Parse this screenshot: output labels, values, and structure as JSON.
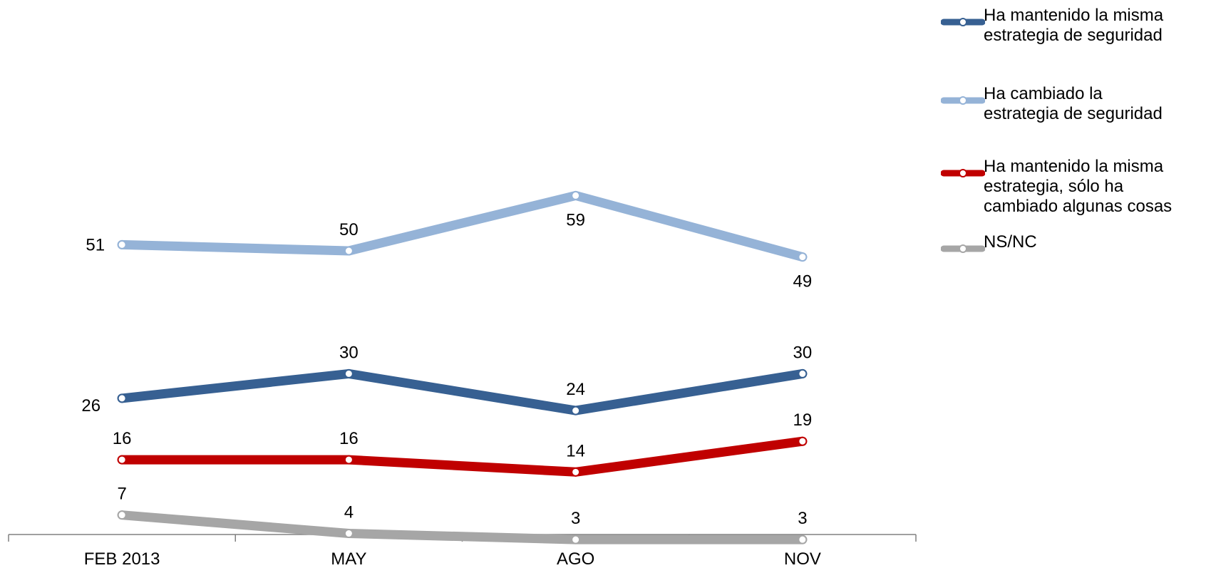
{
  "chart_data": {
    "type": "line",
    "categories": [
      "FEB 2013",
      "MAY",
      "AGO",
      "NOV"
    ],
    "series": [
      {
        "name": "Ha mantenido la misma\nestrategia de seguridad",
        "color": "#376092",
        "values": [
          26,
          30,
          24,
          30
        ],
        "label_positions": [
          "below-left",
          "above",
          "above",
          "above"
        ]
      },
      {
        "name": "Ha cambiado la\nestrategia de seguridad",
        "color": "#95B3D7",
        "values": [
          51,
          50,
          59,
          49
        ],
        "label_positions": [
          "left",
          "above",
          "below",
          "below"
        ]
      },
      {
        "name": "Ha mantenido la misma\nestrategia, sólo ha\ncambiado algunas cosas",
        "color": "#C00000",
        "values": [
          16,
          16,
          14,
          19
        ],
        "label_positions": [
          "above",
          "above",
          "above",
          "above"
        ]
      },
      {
        "name": "NS/NC",
        "color": "#A6A6A6",
        "values": [
          7,
          4,
          3,
          3
        ],
        "label_positions": [
          "above",
          "above",
          "above",
          "above"
        ]
      }
    ],
    "ylim": [
      0,
      80
    ],
    "grid": false,
    "legend_position": "top-right",
    "xlabel": "",
    "ylabel": "",
    "title": ""
  }
}
